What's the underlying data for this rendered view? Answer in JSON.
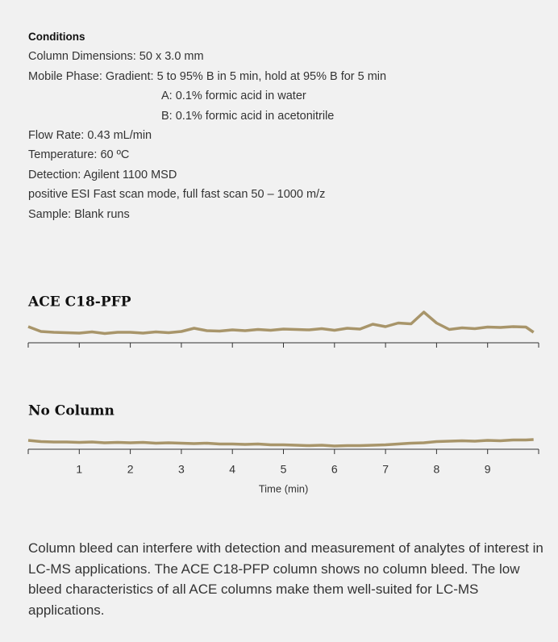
{
  "conditions": {
    "heading": "Conditions",
    "lines": [
      "Column Dimensions: 50 x 3.0 mm",
      "Mobile Phase: Gradient: 5 to 95% B in 5 min, hold at 95% B for 5 min",
      "A: 0.1% formic acid in water",
      "B: 0.1% formic acid in acetonitrile",
      "Flow Rate: 0.43 mL/min",
      "Temperature: 60 ºC",
      "Detection: Agilent 1100 MSD",
      "positive ESI Fast scan mode, full fast scan 50 – 1000 m/z",
      "Sample: Blank runs"
    ]
  },
  "chart_data": [
    {
      "type": "line",
      "title": "ACE C18-PFP",
      "color": "#a8956a",
      "xlim": [
        0,
        10
      ],
      "ylim": [
        0,
        10
      ],
      "xticks": [
        1,
        2,
        3,
        4,
        5,
        6,
        7,
        8,
        9
      ],
      "tick_labels": false,
      "x": [
        0,
        0.25,
        0.5,
        0.75,
        1,
        1.25,
        1.5,
        1.75,
        2,
        2.25,
        2.5,
        2.75,
        3,
        3.25,
        3.5,
        3.75,
        4,
        4.25,
        4.5,
        4.75,
        5,
        5.25,
        5.5,
        5.75,
        6,
        6.25,
        6.5,
        6.75,
        7,
        7.25,
        7.5,
        7.75,
        8,
        8.25,
        8.5,
        8.75,
        9,
        9.25,
        9.5,
        9.75,
        9.9
      ],
      "values": [
        4.0,
        2.8,
        2.6,
        2.5,
        2.4,
        2.7,
        2.3,
        2.6,
        2.6,
        2.4,
        2.7,
        2.5,
        2.8,
        3.6,
        3.0,
        2.9,
        3.2,
        3.0,
        3.3,
        3.1,
        3.4,
        3.3,
        3.2,
        3.5,
        3.1,
        3.6,
        3.4,
        4.6,
        4.0,
        4.9,
        4.7,
        7.6,
        4.9,
        3.3,
        3.7,
        3.5,
        3.9,
        3.8,
        4.0,
        3.9,
        2.6
      ]
    },
    {
      "type": "line",
      "title": "No Column",
      "color": "#a8956a",
      "xlim": [
        0,
        10
      ],
      "ylim": [
        0,
        10
      ],
      "xticks": [
        1,
        2,
        3,
        4,
        5,
        6,
        7,
        8,
        9
      ],
      "tick_labels": true,
      "xlabel": "Time (min)",
      "x": [
        0,
        0.25,
        0.5,
        0.75,
        1,
        1.25,
        1.5,
        1.75,
        2,
        2.25,
        2.5,
        2.75,
        3,
        3.25,
        3.5,
        3.75,
        4,
        4.25,
        4.5,
        4.75,
        5,
        5.25,
        5.5,
        5.75,
        6,
        6.25,
        6.5,
        6.75,
        7,
        7.25,
        7.5,
        7.75,
        8,
        8.25,
        8.5,
        8.75,
        9,
        9.25,
        9.5,
        9.75,
        9.9
      ],
      "values": [
        2.2,
        1.9,
        1.8,
        1.8,
        1.7,
        1.8,
        1.6,
        1.7,
        1.6,
        1.7,
        1.5,
        1.6,
        1.5,
        1.4,
        1.5,
        1.3,
        1.3,
        1.2,
        1.3,
        1.1,
        1.1,
        1.0,
        0.9,
        1.0,
        0.8,
        0.9,
        0.9,
        1.0,
        1.1,
        1.3,
        1.5,
        1.6,
        1.9,
        2.0,
        2.1,
        2.0,
        2.2,
        2.1,
        2.3,
        2.3,
        2.4
      ]
    }
  ],
  "paragraph": "Column bleed can interfere with detection and measurement of analytes of interest in LC-MS applications. The ACE C18-PFP column shows no column bleed. The low bleed characteristics of all ACE columns make them well-suited for LC-MS applications."
}
